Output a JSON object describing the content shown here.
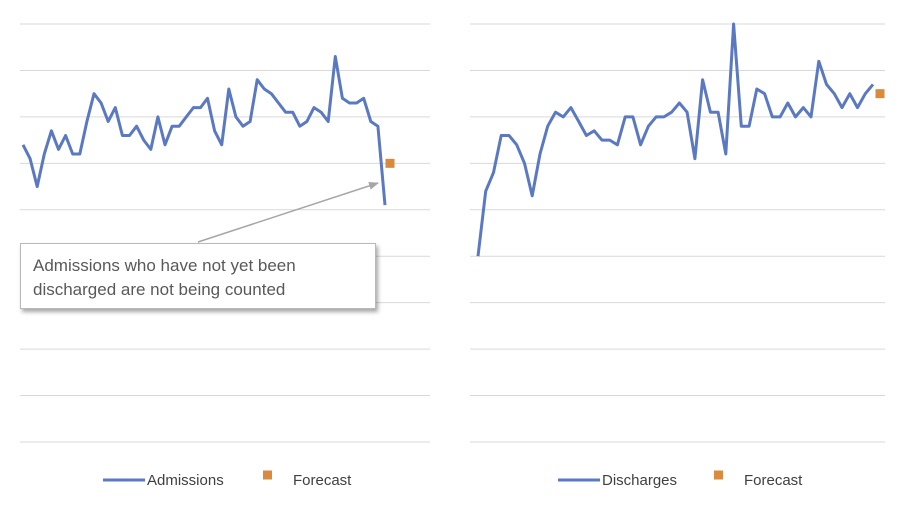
{
  "colors": {
    "line": "#5b79c2",
    "forecast": "#d98a3d",
    "grid": "#d9d9d9",
    "arrow": "#a6a6a6"
  },
  "annotation": {
    "line1": "Admissions who have not yet been",
    "line2": "discharged are not being counted"
  },
  "chart_data": [
    {
      "type": "line",
      "title": "",
      "xlabel": "",
      "ylabel": "",
      "ylim": [
        0,
        9
      ],
      "grid": true,
      "legend_position": "bottom",
      "series": [
        {
          "name": "Admissions",
          "values": [
            6.4,
            6.1,
            5.5,
            6.2,
            6.7,
            6.3,
            6.6,
            6.2,
            6.2,
            6.9,
            7.5,
            7.3,
            6.9,
            7.2,
            6.6,
            6.6,
            6.8,
            6.5,
            6.3,
            7.0,
            6.4,
            6.8,
            6.8,
            7.0,
            7.2,
            7.2,
            7.4,
            6.7,
            6.4,
            7.6,
            7.0,
            6.8,
            6.9,
            7.8,
            7.6,
            7.5,
            7.3,
            7.1,
            7.1,
            6.8,
            6.9,
            7.2,
            7.1,
            6.9,
            8.3,
            7.4,
            7.3,
            7.3,
            7.4,
            6.9,
            6.8,
            5.1
          ]
        },
        {
          "name": "Forecast",
          "values": [
            6.0
          ]
        }
      ]
    },
    {
      "type": "line",
      "title": "",
      "xlabel": "",
      "ylabel": "",
      "ylim": [
        0,
        9
      ],
      "grid": true,
      "legend_position": "bottom",
      "series": [
        {
          "name": "Discharges",
          "values": [
            4.0,
            5.4,
            5.8,
            6.6,
            6.6,
            6.4,
            6.0,
            5.3,
            6.2,
            6.8,
            7.1,
            7.0,
            7.2,
            6.9,
            6.6,
            6.7,
            6.5,
            6.5,
            6.4,
            7.0,
            7.0,
            6.4,
            6.8,
            7.0,
            7.0,
            7.1,
            7.3,
            7.1,
            6.1,
            7.8,
            7.1,
            7.1,
            6.2,
            9.0,
            6.8,
            6.8,
            7.6,
            7.5,
            7.0,
            7.0,
            7.3,
            7.0,
            7.2,
            7.0,
            8.2,
            7.7,
            7.5,
            7.2,
            7.5,
            7.2,
            7.5,
            7.7
          ]
        },
        {
          "name": "Forecast",
          "values": [
            7.5
          ]
        }
      ]
    }
  ]
}
